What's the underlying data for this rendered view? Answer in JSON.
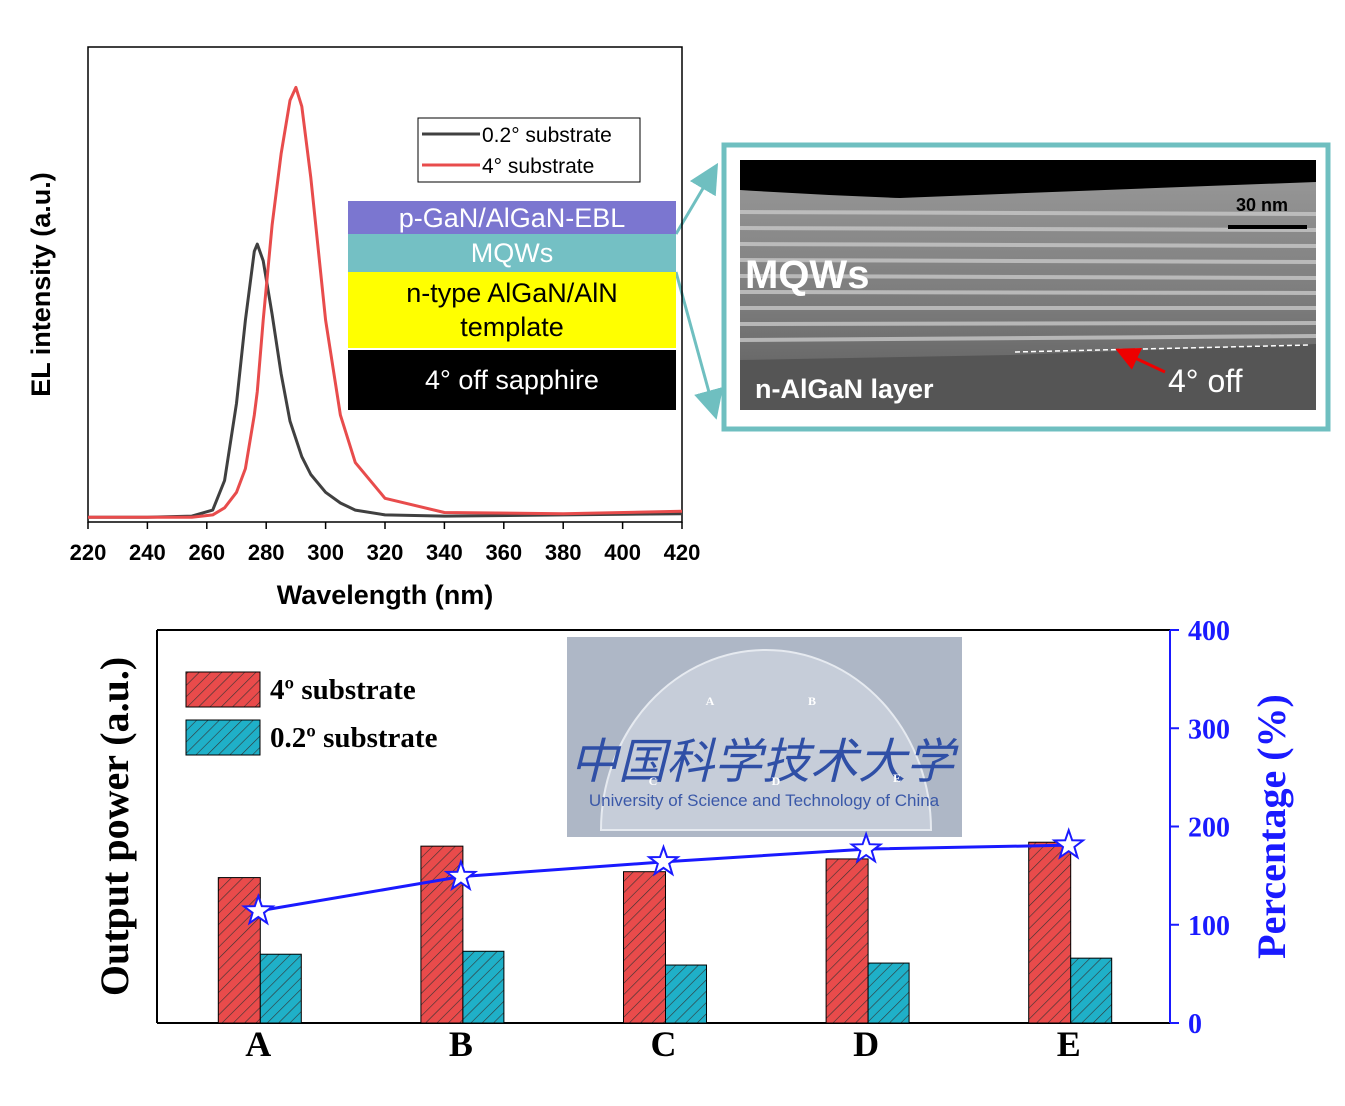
{
  "chart_data": [
    {
      "type": "line",
      "x_label": "Wavelength (nm)",
      "y_label": "EL intensity (a.u.)",
      "xlim": [
        220,
        420
      ],
      "xticks": [
        220,
        240,
        260,
        280,
        300,
        320,
        340,
        360,
        380,
        400,
        420
      ],
      "ylim": [
        0,
        4
      ],
      "legend": "upper right",
      "x": [
        220,
        240,
        255,
        262,
        266,
        270,
        273,
        276,
        277,
        279,
        282,
        285,
        288,
        290,
        292,
        295,
        300,
        305,
        310,
        320,
        340,
        380,
        420
      ],
      "series": [
        {
          "name": "0.2° substrate",
          "color": "#404040",
          "values": [
            0.04,
            0.04,
            0.05,
            0.1,
            0.35,
            1.0,
            1.7,
            2.28,
            2.34,
            2.2,
            1.75,
            1.25,
            0.85,
            0.7,
            0.55,
            0.4,
            0.25,
            0.16,
            0.1,
            0.06,
            0.05,
            0.06,
            0.07
          ]
        },
        {
          "name": "4° substrate",
          "color": "#e84c4c",
          "values": [
            0.04,
            0.04,
            0.04,
            0.06,
            0.12,
            0.25,
            0.45,
            0.9,
            1.1,
            1.7,
            2.5,
            3.1,
            3.55,
            3.66,
            3.5,
            2.9,
            1.7,
            0.9,
            0.5,
            0.2,
            0.08,
            0.07,
            0.09
          ]
        }
      ]
    },
    {
      "type": "bar",
      "y_label": "Output power (a.u.)",
      "y2_label": "Percentage (%)",
      "categories": [
        "A",
        "B",
        "C",
        "D",
        "E"
      ],
      "ylim": [
        0,
        4
      ],
      "y2lim": [
        0,
        400
      ],
      "y2ticks": [
        0,
        100,
        200,
        300,
        400
      ],
      "legend": "upper left",
      "series": [
        {
          "name": "4º substrate",
          "color": "#e94b4b",
          "values": [
            1.48,
            1.8,
            1.54,
            1.67,
            1.84
          ]
        },
        {
          "name": "0.2º substrate",
          "color": "#1fb0c8",
          "values": [
            0.7,
            0.73,
            0.59,
            0.61,
            0.66
          ]
        },
        {
          "type": "line",
          "axis": "y2",
          "color": "#1a1aff",
          "values": [
            114,
            149,
            164,
            177,
            181
          ]
        }
      ]
    }
  ],
  "layer_stack": [
    "p-GaN/AlGaN-EBL",
    "MQWs",
    "n-type AlGaN/AlN template",
    "4°  off sapphire"
  ],
  "tem_image": {
    "scale_bar": "30 nm",
    "mqw_label": "MQWs",
    "layer_label": "n-AlGaN layer",
    "angle_label": "4°  off"
  },
  "wafer_photo": {
    "labels": [
      "A",
      "B",
      "C",
      "D",
      "E"
    ],
    "name_zh": "中国科学技术大学",
    "name_en": "University of Science and Technology of China"
  }
}
